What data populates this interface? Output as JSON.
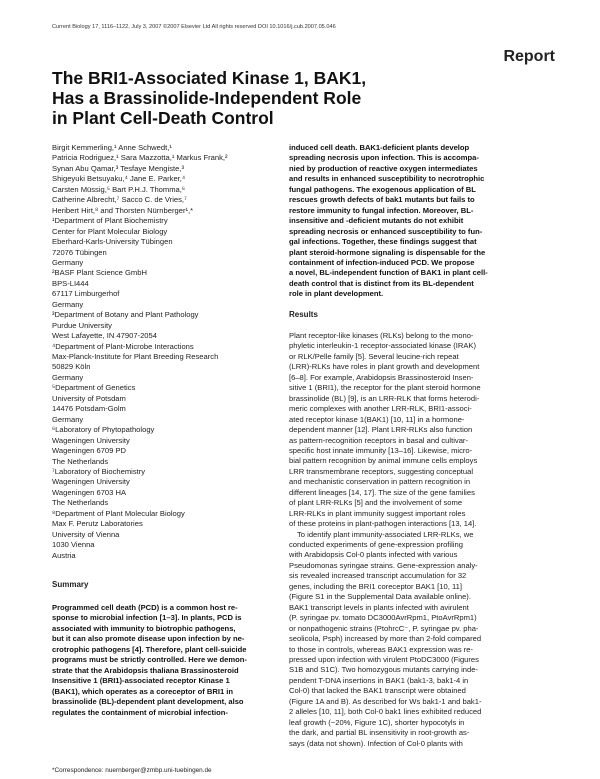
{
  "header": {
    "journal_line": "Current Biology 17, 1116–1122, July 3, 2007 ©2007 Elsevier Ltd All rights reserved    DOI 10.1016/j.cub.2007.05.046",
    "article_type": "Report"
  },
  "title": [
    "The BRI1-Associated Kinase 1, BAK1,",
    "Has a Brassinolide-Independent Role",
    "in Plant Cell-Death Control"
  ],
  "authors": [
    "Birgit Kemmerling,¹ Anne Schwedt,¹",
    "Patricia Rodriguez,¹ Sara Mazzotta,¹ Markus Frank,²",
    "Synan Abu Qamar,³ Tesfaye Mengiste,³",
    "Shigeyuki Betsuyaku,⁴ Jane E. Parker,⁴",
    "Carsten Müssig,⁵ Bart P.H.J. Thomma,⁶",
    "Catherine Albrecht,⁷ Sacco C. de Vries,⁷",
    "Heribert Hirt,⁸ and Thorsten Nürnberger¹,*"
  ],
  "affiliations": [
    "¹Department of Plant Biochemistry",
    "Center for Plant Molecular Biology",
    "Eberhard-Karls-University Tübingen",
    "72076 Tübingen",
    "Germany",
    "²BASF Plant Science GmbH",
    "BPS-LI444",
    "67117 Limburgerhof",
    "Germany",
    "³Department of Botany and Plant Pathology",
    "Purdue University",
    "West Lafayette, IN 47907-2054",
    "⁴Department of Plant-Microbe Interactions",
    "Max-Planck-Institute for Plant Breeding Research",
    "50829 Köln",
    "Germany",
    "⁵Department of Genetics",
    "University of Potsdam",
    "14476 Potsdam-Golm",
    "Germany",
    "⁶Laboratory of Phytopathology",
    "Wageningen University",
    "Wageningen 6709 PD",
    "The Netherlands",
    "⁷Laboratory of Biochemistry",
    "Wageningen University",
    "Wageningen 6703 HA",
    "The Netherlands",
    "⁸Department of Plant Molecular Biology",
    "Max F. Perutz Laboratories",
    "University of Vienna",
    "1030 Vienna",
    "Austria"
  ],
  "summary": {
    "heading": "Summary",
    "lines": [
      "Programmed cell death (PCD) is a common host re-",
      "sponse to microbial infection [1–3]. In plants, PCD is",
      "associated with immunity to biotrophic pathogens,",
      "but it can also promote disease upon infection by ne-",
      "crotrophic pathogens [4]. Therefore, plant cell-suicide",
      "programs must be strictly controlled. Here we demon-",
      "strate that the Arabidopsis thaliana Brassinosteroid",
      "Insensitive 1 (BRI1)-associated receptor Kinase 1",
      "(BAK1), which operates as a coreceptor of BRI1 in",
      "brassinolide (BL)-dependent plant development, also",
      "regulates the containment of microbial infection-"
    ],
    "continued": [
      "induced cell death. BAK1-deficient plants develop",
      "spreading necrosis upon infection. This is accompa-",
      "nied by production of reactive oxygen intermediates",
      "and results in enhanced susceptibility to necrotrophic",
      "fungal pathogens. The exogenous application of BL",
      "rescues growth defects of bak1 mutants but fails to",
      "restore immunity to fungal infection. Moreover, BL-",
      "insensitive and -deficient mutants do not exhibit",
      "spreading necrosis or enhanced susceptibility to fun-",
      "gal infections. Together, these findings suggest that",
      "plant steroid-hormone signaling is dispensable for the",
      "containment of infection-induced PCD. We propose",
      "a novel, BL-independent function of BAK1 in plant cell-",
      "death control that is distinct from its BL-dependent",
      "role in plant development."
    ]
  },
  "results": {
    "heading": "Results",
    "paragraphs": [
      [
        "Plant receptor-like kinases (RLKs) belong to the mono-",
        "phyletic interleukin-1 receptor-associated kinase (IRAK)",
        "or RLK/Pelle family [5]. Several leucine-rich repeat",
        "(LRR)-RLKs have roles in plant growth and development",
        "[6–8]. For example, Arabidopsis Brassinosteroid Insen-",
        "sitive 1 (BRI1), the receptor for the plant steroid hormone",
        "brassinolide (BL) [9], is an LRR-RLK that forms heterodi-",
        "meric complexes with another LRR-RLK, BRI1-associ-",
        "ated receptor kinase 1(BAK1) [10, 11] in a hormone-",
        "dependent manner [12]. Plant LRR-RLKs also function",
        "as pattern-recognition receptors in basal and cultivar-",
        "specific host innate immunity [13–16]. Likewise, micro-",
        "bial pattern recognition by animal immune cells employs",
        "LRR transmembrane receptors, suggesting conceptual",
        "and mechanistic conservation in pattern recognition in",
        "different lineages [14, 17]. The size of the gene families",
        "of plant LRR-RLKs [5] and the involvement of some",
        "LRR-RLKs in plant immunity suggest important roles",
        "of these proteins in plant-pathogen interactions [13, 14]."
      ],
      [
        "To identify plant immunity-associated LRR-RLKs, we",
        "conducted experiments of gene-expression profiling",
        "with Arabidopsis Col-0 plants infected with various",
        "Pseudomonas syringae strains. Gene-expression analy-",
        "sis revealed increased transcript accumulation for 32",
        "genes, including the BRI1 coreceptor BAK1 [10, 11]",
        "(Figure S1 in the Supplemental Data available online).",
        "BAK1 transcript levels in plants infected with avirulent",
        "(P. syringae pv. tomato DC3000AvrRpm1, PtoAvrRpm1)",
        "or nonpathogenic strains (PtohrcC⁻, P. syringae pv. pha-",
        "seolicola, Psph) increased by more than 2-fold compared",
        "to those in controls, whereas BAK1 expression was re-",
        "pressed upon infection with virulent PtoDC3000 (Figures",
        "S1B and S1C). Two homozygous mutants carrying inde-",
        "pendent T-DNA insertions in BAK1 (bak1-3, bak1-4 in",
        "Col-0) that lacked the BAK1 transcript were obtained",
        "(Figure 1A and B). As described for Ws bak1-1 and bak1-",
        "2 alleles [10, 11], both Col-0 bak1 lines exhibited reduced",
        "leaf growth (~20%, Figure 1C), shorter hypocotyls in",
        "the dark, and partial BL insensitivity in root-growth as-",
        "says (data not shown). Infection of Col-0 plants with"
      ]
    ]
  },
  "footnote": "*Correspondence: nuernberger@zmbp.uni-tuebingen.de"
}
